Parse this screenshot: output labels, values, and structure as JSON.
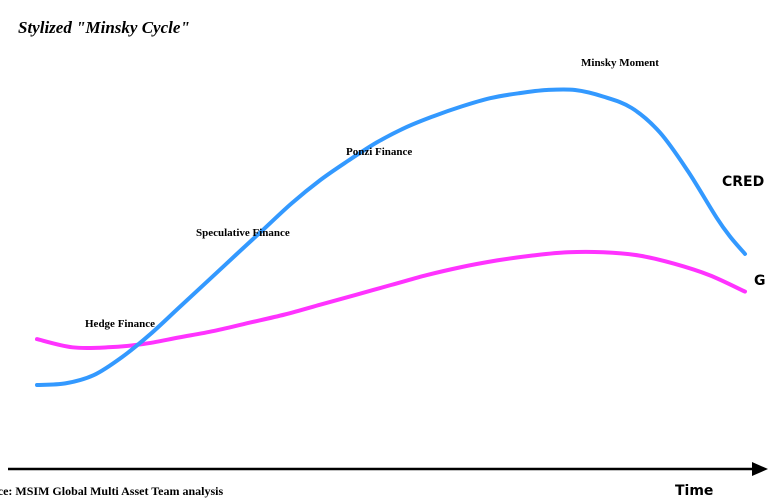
{
  "chart_data": {
    "type": "line",
    "title": "Stylized \"Minsky Cycle\"",
    "xlabel": "Time",
    "ylabel": "",
    "grid": false,
    "stages": [
      "Hedge Finance",
      "Speculative Finance",
      "Ponzi Finance",
      "Minsky Moment"
    ],
    "series": [
      {
        "name": "CRED",
        "color": "#3399ff",
        "x": [
          0,
          4,
          8,
          12,
          16,
          20,
          24,
          28,
          32,
          36,
          40,
          44,
          48,
          52,
          56,
          60,
          64,
          68,
          72,
          76,
          80,
          84,
          88,
          92,
          96,
          98,
          100
        ],
        "values": [
          10,
          10.5,
          13,
          18.5,
          25.5,
          33.5,
          41.5,
          49.5,
          57.5,
          65.5,
          72.5,
          78.5,
          84,
          88.5,
          92,
          95,
          97.5,
          99,
          100,
          100,
          98,
          94.5,
          87,
          75,
          61,
          55,
          50
        ]
      },
      {
        "name": "G",
        "color": "#ff33ff",
        "x": [
          0,
          5,
          10,
          15,
          20,
          25,
          30,
          35,
          40,
          45,
          50,
          55,
          60,
          65,
          70,
          75,
          80,
          85,
          90,
          95,
          100
        ],
        "values": [
          24,
          21.5,
          21.5,
          22.5,
          24.5,
          26.5,
          29,
          31.5,
          34.5,
          37.5,
          40.5,
          43.5,
          46,
          48,
          49.5,
          50.5,
          50.5,
          49.5,
          47,
          43.5,
          38.5
        ]
      }
    ]
  },
  "source": "urce: MSIM Global Multi Asset Team analysis"
}
